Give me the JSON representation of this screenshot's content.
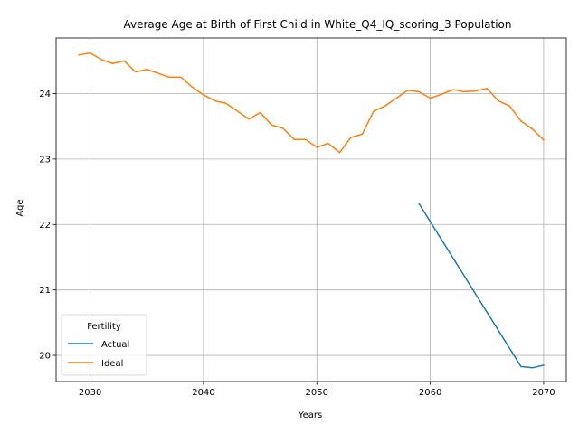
{
  "chart_data": {
    "type": "line",
    "title": "Average Age at Birth of First Child in White_Q4_IQ_scoring_3 Population",
    "xlabel": "Years",
    "ylabel": "Age",
    "xlim": [
      2027,
      2072
    ],
    "ylim": [
      19.6,
      24.85
    ],
    "xticks": [
      2030,
      2040,
      2050,
      2060,
      2070
    ],
    "yticks": [
      20,
      21,
      22,
      23,
      24
    ],
    "grid": true,
    "legend": {
      "title": "Fertility",
      "placement": "lower-left"
    },
    "series": [
      {
        "name": "Actual",
        "color": "#1f77b4",
        "x": [
          2059,
          2068,
          2069,
          2070
        ],
        "y": [
          22.32,
          19.83,
          19.81,
          19.85
        ]
      },
      {
        "name": "Ideal",
        "color": "#ff7f0e",
        "x": [
          2029,
          2030,
          2031,
          2032,
          2033,
          2034,
          2035,
          2036,
          2037,
          2038,
          2039,
          2040,
          2041,
          2042,
          2043,
          2044,
          2045,
          2046,
          2047,
          2048,
          2049,
          2050,
          2051,
          2052,
          2053,
          2054,
          2055,
          2056,
          2057,
          2058,
          2059,
          2060,
          2061,
          2062,
          2063,
          2064,
          2065,
          2066,
          2067,
          2068,
          2069,
          2070
        ],
        "y": [
          24.59,
          24.62,
          24.52,
          24.46,
          24.5,
          24.33,
          24.37,
          24.31,
          24.25,
          24.25,
          24.1,
          23.98,
          23.89,
          23.85,
          23.73,
          23.61,
          23.71,
          23.52,
          23.47,
          23.3,
          23.3,
          23.18,
          23.24,
          23.1,
          23.33,
          23.38,
          23.73,
          23.81,
          23.93,
          24.05,
          24.03,
          23.93,
          23.99,
          24.06,
          24.03,
          24.04,
          24.08,
          23.89,
          23.81,
          23.58,
          23.46,
          23.29
        ]
      }
    ]
  }
}
